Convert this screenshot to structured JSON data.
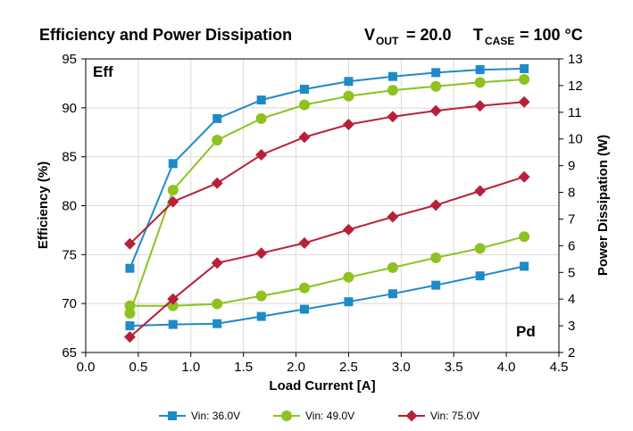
{
  "chart_data": {
    "type": "line",
    "title": "Efficiency and Power Dissipation",
    "title_vout_label": "V",
    "title_vout_sub": "OUT",
    "title_vout_value": "= 20.0",
    "title_tcase_label": "T",
    "title_tcase_sub": "CASE",
    "title_tcase_value": "= 100 °C",
    "xlabel": "Load Current [A]",
    "ylabel_left": "Efficiency (%)",
    "ylabel_right": "Power Dissipation (W)",
    "xlim": [
      0,
      4.5
    ],
    "ylim_left": [
      65,
      95
    ],
    "ylim_right": [
      2,
      13
    ],
    "x_ticks": [
      "0.0",
      "0.5",
      "1.0",
      "1.5",
      "2.0",
      "2.5",
      "3.0",
      "3.5",
      "4.0",
      "4.5"
    ],
    "y_left_ticks": [
      "65",
      "70",
      "75",
      "80",
      "85",
      "90",
      "95"
    ],
    "y_right_ticks": [
      "2",
      "3",
      "4",
      "5",
      "6",
      "7",
      "8",
      "9",
      "10",
      "11",
      "12",
      "13"
    ],
    "grid": true,
    "annotation_eff": "Eff",
    "annotation_pd": "Pd",
    "legend_position": "bottom",
    "x": [
      0.42,
      0.83,
      1.25,
      1.67,
      2.08,
      2.5,
      2.92,
      3.33,
      3.75,
      4.17
    ],
    "series": [
      {
        "name": "Vin: 36.0V",
        "color": "#1f8ac8",
        "marker": "square",
        "efficiency": [
          73.6,
          84.3,
          88.9,
          90.8,
          91.9,
          92.7,
          93.2,
          93.6,
          93.9,
          94.0
        ],
        "power": [
          3.0,
          3.05,
          3.08,
          3.35,
          3.62,
          3.9,
          4.2,
          4.52,
          4.87,
          5.23
        ]
      },
      {
        "name": "Vin: 49.0V",
        "color": "#8dc21f",
        "marker": "circle",
        "efficiency": [
          69.0,
          81.6,
          86.7,
          88.9,
          90.3,
          91.2,
          91.8,
          92.2,
          92.6,
          92.9
        ],
        "power": [
          3.75,
          3.75,
          3.82,
          4.12,
          4.42,
          4.82,
          5.18,
          5.55,
          5.9,
          6.34
        ]
      },
      {
        "name": "Vin: 75.0V",
        "color": "#b8203a",
        "marker": "diamond",
        "efficiency": [
          76.1,
          80.4,
          82.3,
          85.2,
          87.0,
          88.3,
          89.1,
          89.7,
          90.2,
          90.6
        ],
        "power": [
          2.58,
          4.0,
          5.35,
          5.72,
          6.1,
          6.6,
          7.08,
          7.52,
          8.05,
          8.58
        ]
      }
    ]
  }
}
